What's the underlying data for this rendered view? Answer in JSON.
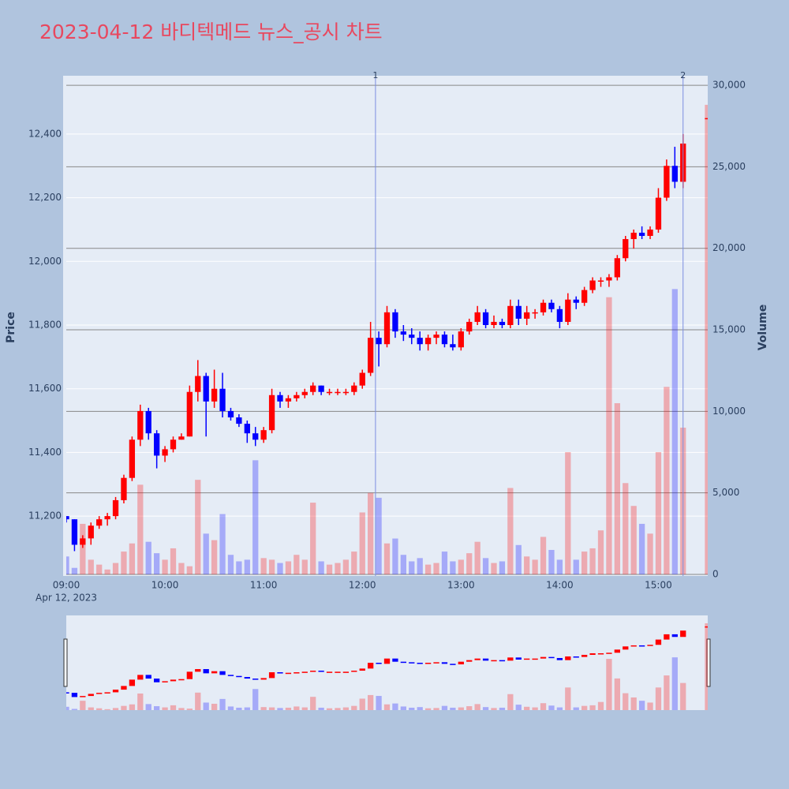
{
  "chart_data": {
    "type": "candlestick",
    "title": "2023-04-12 바디텍메드 뉴스_공시 차트",
    "y_label": "Price",
    "y2_label": "Volume",
    "x_date_label": "Apr 12, 2023",
    "increasing_color": "#ff0000",
    "decreasing_color": "#0000ff",
    "x": [
      "09:00",
      "09:05",
      "09:10",
      "09:15",
      "09:20",
      "09:25",
      "09:30",
      "09:35",
      "09:40",
      "09:45",
      "09:50",
      "09:55",
      "10:00",
      "10:05",
      "10:10",
      "10:15",
      "10:20",
      "10:25",
      "10:30",
      "10:35",
      "10:40",
      "10:45",
      "10:50",
      "10:55",
      "11:00",
      "11:05",
      "11:10",
      "11:15",
      "11:20",
      "11:25",
      "11:30",
      "11:35",
      "11:40",
      "11:45",
      "11:50",
      "11:55",
      "12:00",
      "12:05",
      "12:10",
      "12:15",
      "12:20",
      "12:25",
      "12:30",
      "12:35",
      "12:40",
      "12:45",
      "12:50",
      "12:55",
      "13:00",
      "13:05",
      "13:10",
      "13:15",
      "13:20",
      "13:25",
      "13:30",
      "13:35",
      "13:40",
      "13:45",
      "13:50",
      "13:55",
      "14:00",
      "14:05",
      "14:10",
      "14:15",
      "14:20",
      "14:25",
      "14:30",
      "14:35",
      "14:40",
      "14:45",
      "14:50",
      "14:55",
      "15:00",
      "15:05",
      "15:10",
      "15:15",
      "15:30"
    ],
    "open": [
      11200,
      11190,
      11110,
      11130,
      11170,
      11190,
      11200,
      11250,
      11320,
      11440,
      11530,
      11460,
      11390,
      11410,
      11440,
      11450,
      11590,
      11640,
      11560,
      11600,
      11530,
      11510,
      11490,
      11460,
      11440,
      11470,
      11580,
      11560,
      11570,
      11580,
      11590,
      11610,
      11590,
      11590,
      11590,
      11590,
      11610,
      11650,
      11760,
      11740,
      11840,
      11780,
      11770,
      11760,
      11740,
      11760,
      11770,
      11740,
      11730,
      11780,
      11810,
      11840,
      11800,
      11810,
      11800,
      11860,
      11820,
      11840,
      11840,
      11870,
      11850,
      11810,
      11880,
      11870,
      11910,
      11940,
      11940,
      11950,
      12010,
      12070,
      12090,
      12080,
      12100,
      12200,
      12300,
      12250,
      12450
    ],
    "high": [
      11200,
      11190,
      11140,
      11180,
      11200,
      11210,
      11260,
      11330,
      11450,
      11550,
      11540,
      11470,
      11420,
      11450,
      11460,
      11610,
      11690,
      11650,
      11660,
      11650,
      11540,
      11520,
      11500,
      11480,
      11480,
      11600,
      11590,
      11580,
      11590,
      11600,
      11620,
      11610,
      11600,
      11600,
      11600,
      11620,
      11660,
      11810,
      11780,
      11860,
      11850,
      11800,
      11790,
      11780,
      11770,
      11780,
      11780,
      11770,
      11790,
      11820,
      11860,
      11850,
      11830,
      11820,
      11880,
      11880,
      11860,
      11850,
      11880,
      11880,
      11860,
      11900,
      11890,
      11920,
      11950,
      11950,
      11960,
      12020,
      12080,
      12100,
      12110,
      12110,
      12230,
      12320,
      12360,
      12400,
      12450
    ],
    "low": [
      11180,
      11090,
      11100,
      11110,
      11160,
      11170,
      11190,
      11240,
      11310,
      11420,
      11440,
      11350,
      11370,
      11400,
      11440,
      11450,
      11560,
      11450,
      11540,
      11510,
      11500,
      11480,
      11430,
      11420,
      11430,
      11460,
      11540,
      11540,
      11560,
      11570,
      11580,
      11580,
      11580,
      11580,
      11580,
      11580,
      11600,
      11640,
      11670,
      11730,
      11760,
      11750,
      11740,
      11720,
      11720,
      11740,
      11730,
      11720,
      11720,
      11770,
      11800,
      11790,
      11790,
      11790,
      11790,
      11800,
      11800,
      11820,
      11830,
      11840,
      11790,
      11800,
      11850,
      11860,
      11900,
      11920,
      11920,
      11940,
      12000,
      12040,
      12070,
      12070,
      12090,
      12190,
      12230,
      12230,
      12450
    ],
    "close": [
      11190,
      11110,
      11130,
      11170,
      11190,
      11200,
      11250,
      11320,
      11440,
      11530,
      11460,
      11390,
      11410,
      11440,
      11450,
      11590,
      11640,
      11560,
      11600,
      11530,
      11510,
      11490,
      11460,
      11440,
      11470,
      11580,
      11560,
      11570,
      11580,
      11590,
      11610,
      11590,
      11590,
      11590,
      11590,
      11610,
      11650,
      11760,
      11740,
      11840,
      11780,
      11770,
      11760,
      11740,
      11760,
      11770,
      11740,
      11730,
      11780,
      11810,
      11840,
      11800,
      11810,
      11800,
      11860,
      11820,
      11840,
      11840,
      11870,
      11850,
      11810,
      11880,
      11870,
      11910,
      11940,
      11940,
      11950,
      12010,
      12070,
      12090,
      12080,
      12100,
      12200,
      12300,
      12250,
      12370,
      12450
    ],
    "volume": [
      1100,
      400,
      3100,
      900,
      600,
      300,
      700,
      1400,
      1900,
      5500,
      2000,
      1300,
      900,
      1600,
      700,
      500,
      5800,
      2500,
      2100,
      3700,
      1200,
      800,
      900,
      7000,
      1000,
      900,
      700,
      800,
      1200,
      900,
      4400,
      800,
      600,
      700,
      900,
      1400,
      3800,
      5000,
      4700,
      1900,
      2200,
      1200,
      800,
      1000,
      600,
      700,
      1400,
      800,
      900,
      1300,
      2000,
      1000,
      700,
      800,
      5300,
      1800,
      1100,
      900,
      2300,
      1500,
      900,
      7500,
      900,
      1400,
      1600,
      2700,
      17000,
      10500,
      5600,
      4200,
      3100,
      2500,
      7500,
      11500,
      17500,
      9000,
      28800
    ],
    "xlim": [
      "09:00",
      "15:30"
    ],
    "xticks": [
      "09:00",
      "10:00",
      "11:00",
      "12:00",
      "13:00",
      "14:00",
      "15:00"
    ],
    "ylim": [
      11012,
      12583
    ],
    "yticks": [
      {
        "value": 11200,
        "label": "11,200"
      },
      {
        "value": 11400,
        "label": "11,400"
      },
      {
        "value": 11600,
        "label": "11,600"
      },
      {
        "value": 11800,
        "label": "11,800"
      },
      {
        "value": 12000,
        "label": "12,000"
      },
      {
        "value": 12200,
        "label": "12,200"
      },
      {
        "value": 12400,
        "label": "12,400"
      }
    ],
    "y2lim": [
      0,
      30100
    ],
    "y2ticks": [
      0,
      {
        "value": 5000,
        "label": "5,000"
      },
      {
        "value": 10000,
        "label": "10,000"
      },
      {
        "value": 15000,
        "label": "15,000"
      },
      {
        "value": 20000,
        "label": "20,000"
      },
      {
        "value": 25000,
        "label": "25,000"
      },
      {
        "value": 30000,
        "label": "30,000"
      }
    ],
    "events": [
      {
        "label": "1",
        "x": "12:08"
      },
      {
        "label": "2",
        "x": "15:15"
      }
    ],
    "event_color": "#7b8fe0",
    "grid": true
  }
}
